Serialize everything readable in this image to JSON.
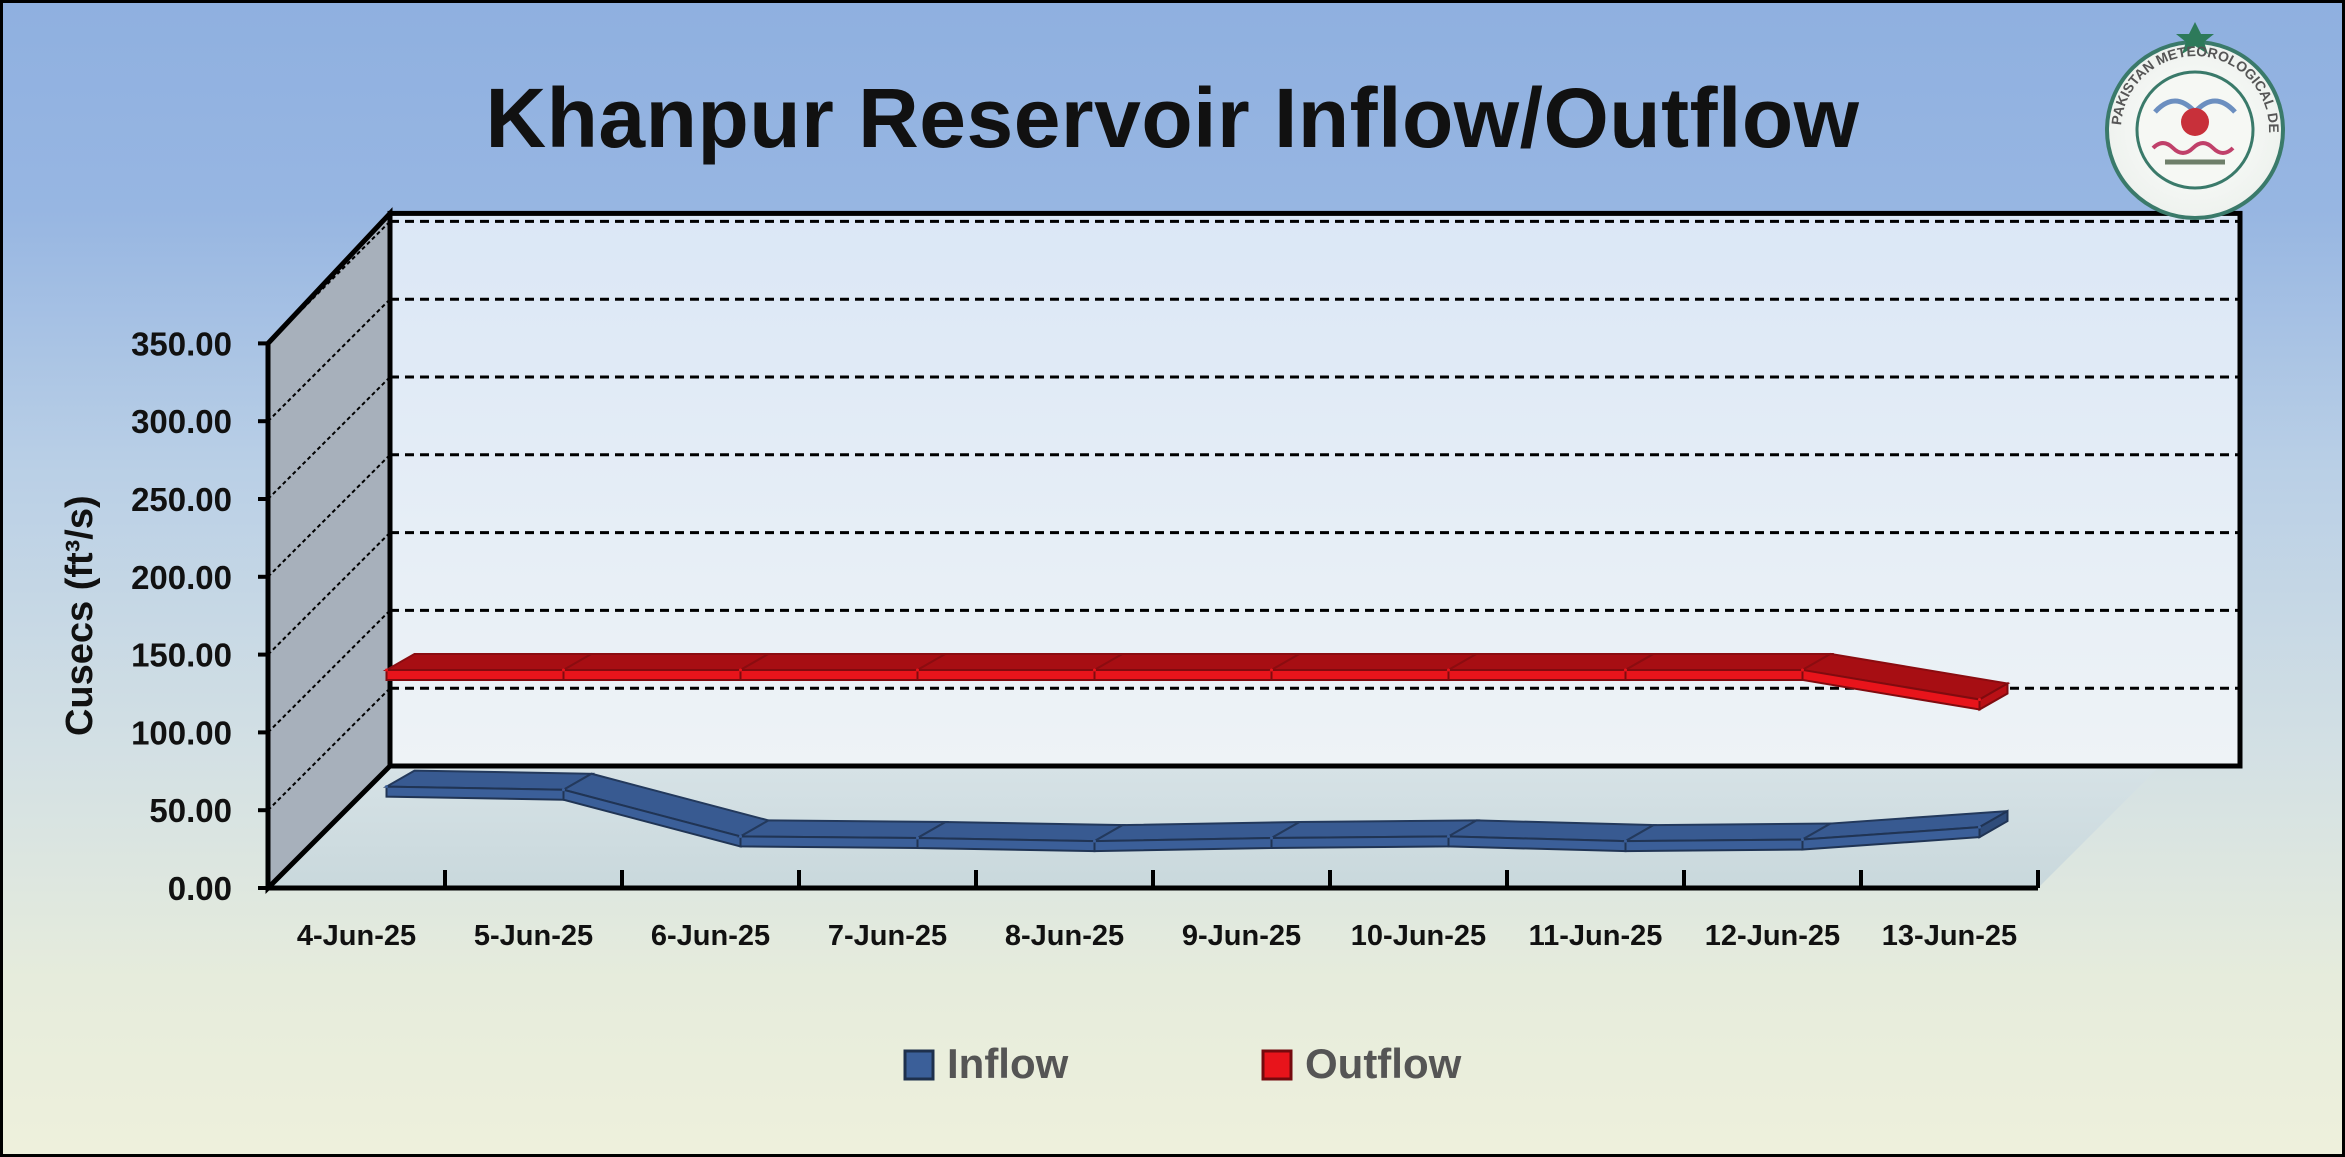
{
  "chart_data": {
    "type": "line",
    "title": "Khanpur Reservoir Inflow/Outflow",
    "ylabel": "Cusecs (ft³/s)",
    "xlabel": "",
    "categories": [
      "4-Jun-25",
      "5-Jun-25",
      "6-Jun-25",
      "7-Jun-25",
      "8-Jun-25",
      "9-Jun-25",
      "10-Jun-25",
      "11-Jun-25",
      "12-Jun-25",
      "13-Jun-25"
    ],
    "yticks": [
      "0.00",
      "50.00",
      "100.00",
      "150.00",
      "200.00",
      "250.00",
      "300.00",
      "350.00"
    ],
    "ylim": [
      0,
      350
    ],
    "grid": true,
    "legend_position": "bottom",
    "series": [
      {
        "name": "Inflow",
        "color": "#3b5f99",
        "values": [
          60,
          58,
          28,
          27,
          25,
          27,
          28,
          25,
          26,
          34
        ]
      },
      {
        "name": "Outflow",
        "color": "#e8141b",
        "values": [
          135,
          135,
          135,
          135,
          135,
          135,
          135,
          135,
          135,
          116
        ]
      }
    ]
  },
  "logo": {
    "text": "PAKISTAN METEOROLOGICAL DEPARTMENT"
  }
}
